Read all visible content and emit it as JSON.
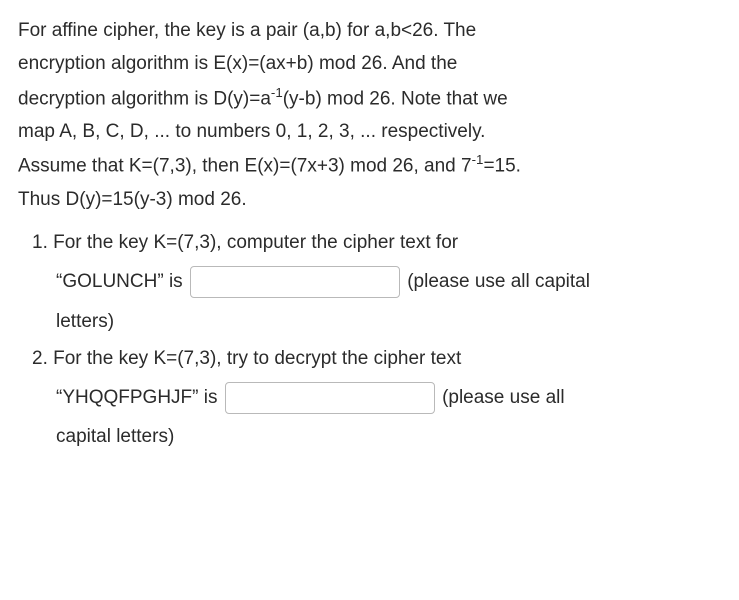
{
  "intro": {
    "line1": "For affine cipher, the key is a pair (a,b) for a,b<26. The",
    "line2": "encryption algorithm is E(x)=(ax+b) mod 26. And the",
    "line3_pre": "decryption algorithm is D(y)=a",
    "line3_exp": "-1",
    "line3_post": "(y-b) mod 26. Note that we",
    "line4": "map A, B, C, D, ... to numbers 0, 1, 2, 3, ... respectively.",
    "line5_pre": "Assume that K=(7,3), then E(x)=(7x+3) mod 26, and 7",
    "line5_exp": "-1",
    "line5_post": "=15.",
    "line6": "Thus D(y)=15(y-3) mod 26."
  },
  "q1": {
    "prompt": "1. For the key K=(7,3), computer the cipher text for",
    "plain_label": "“GOLUNCH” is",
    "hint_part1": "(please use all capital",
    "hint_part2": "letters)"
  },
  "q2": {
    "prompt": "2. For the key K=(7,3), try to decrypt the cipher text",
    "cipher_label": "“YHQQFPGHJF” is",
    "hint_part1": "(please use all",
    "hint_part2": "capital letters)"
  }
}
